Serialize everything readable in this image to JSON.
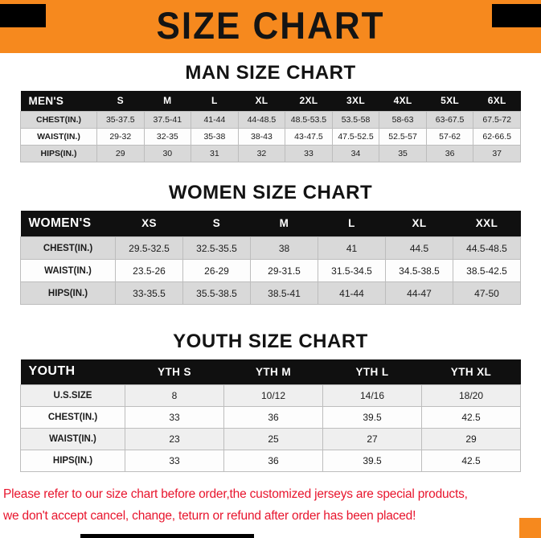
{
  "page": {
    "title": "SIZE CHART"
  },
  "sections": [
    {
      "id": "man",
      "title": "MAN SIZE CHART",
      "table": {
        "header": [
          "MEN'S",
          "S",
          "M",
          "L",
          "XL",
          "2XL",
          "3XL",
          "4XL",
          "5XL",
          "6XL"
        ],
        "rows": [
          [
            "CHEST(IN.)",
            "35-37.5",
            "37.5-41",
            "41-44",
            "44-48.5",
            "48.5-53.5",
            "53.5-58",
            "58-63",
            "63-67.5",
            "67.5-72"
          ],
          [
            "WAIST(IN.)",
            "29-32",
            "32-35",
            "35-38",
            "38-43",
            "43-47.5",
            "47.5-52.5",
            "52.5-57",
            "57-62",
            "62-66.5"
          ],
          [
            "HIPS(IN.)",
            "29",
            "30",
            "31",
            "32",
            "33",
            "34",
            "35",
            "36",
            "37"
          ]
        ]
      }
    },
    {
      "id": "women",
      "title": "WOMEN SIZE CHART",
      "table": {
        "header": [
          "WOMEN'S",
          "XS",
          "S",
          "M",
          "L",
          "XL",
          "XXL"
        ],
        "rows": [
          [
            "CHEST(IN.)",
            "29.5-32.5",
            "32.5-35.5",
            "38",
            "41",
            "44.5",
            "44.5-48.5"
          ],
          [
            "WAIST(IN.)",
            "23.5-26",
            "26-29",
            "29-31.5",
            "31.5-34.5",
            "34.5-38.5",
            "38.5-42.5"
          ],
          [
            "HIPS(IN.)",
            "33-35.5",
            "35.5-38.5",
            "38.5-41",
            "41-44",
            "44-47",
            "47-50"
          ]
        ]
      }
    },
    {
      "id": "youth",
      "title": "YOUTH SIZE CHART",
      "table": {
        "header": [
          "YOUTH",
          "YTH S",
          "YTH M",
          "YTH L",
          "YTH XL"
        ],
        "rows": [
          [
            "U.S.SIZE",
            "8",
            "10/12",
            "14/16",
            "18/20"
          ],
          [
            "CHEST(IN.)",
            "33",
            "36",
            "39.5",
            "42.5"
          ],
          [
            "WAIST(IN.)",
            "23",
            "25",
            "27",
            "29"
          ],
          [
            "HIPS(IN.)",
            "33",
            "36",
            "39.5",
            "42.5"
          ]
        ]
      }
    }
  ],
  "footer": {
    "line1": "Please refer to our size chart before order,the customized jerseys are special products,",
    "line2": "we don't accept cancel, change, teturn or refund after order has been placed!"
  },
  "colors": {
    "banner_orange": "#F6891E",
    "table_header_black": "#101010",
    "row_stripe_gray": "#d9d9d9",
    "disclaimer_red": "#E8152D"
  }
}
